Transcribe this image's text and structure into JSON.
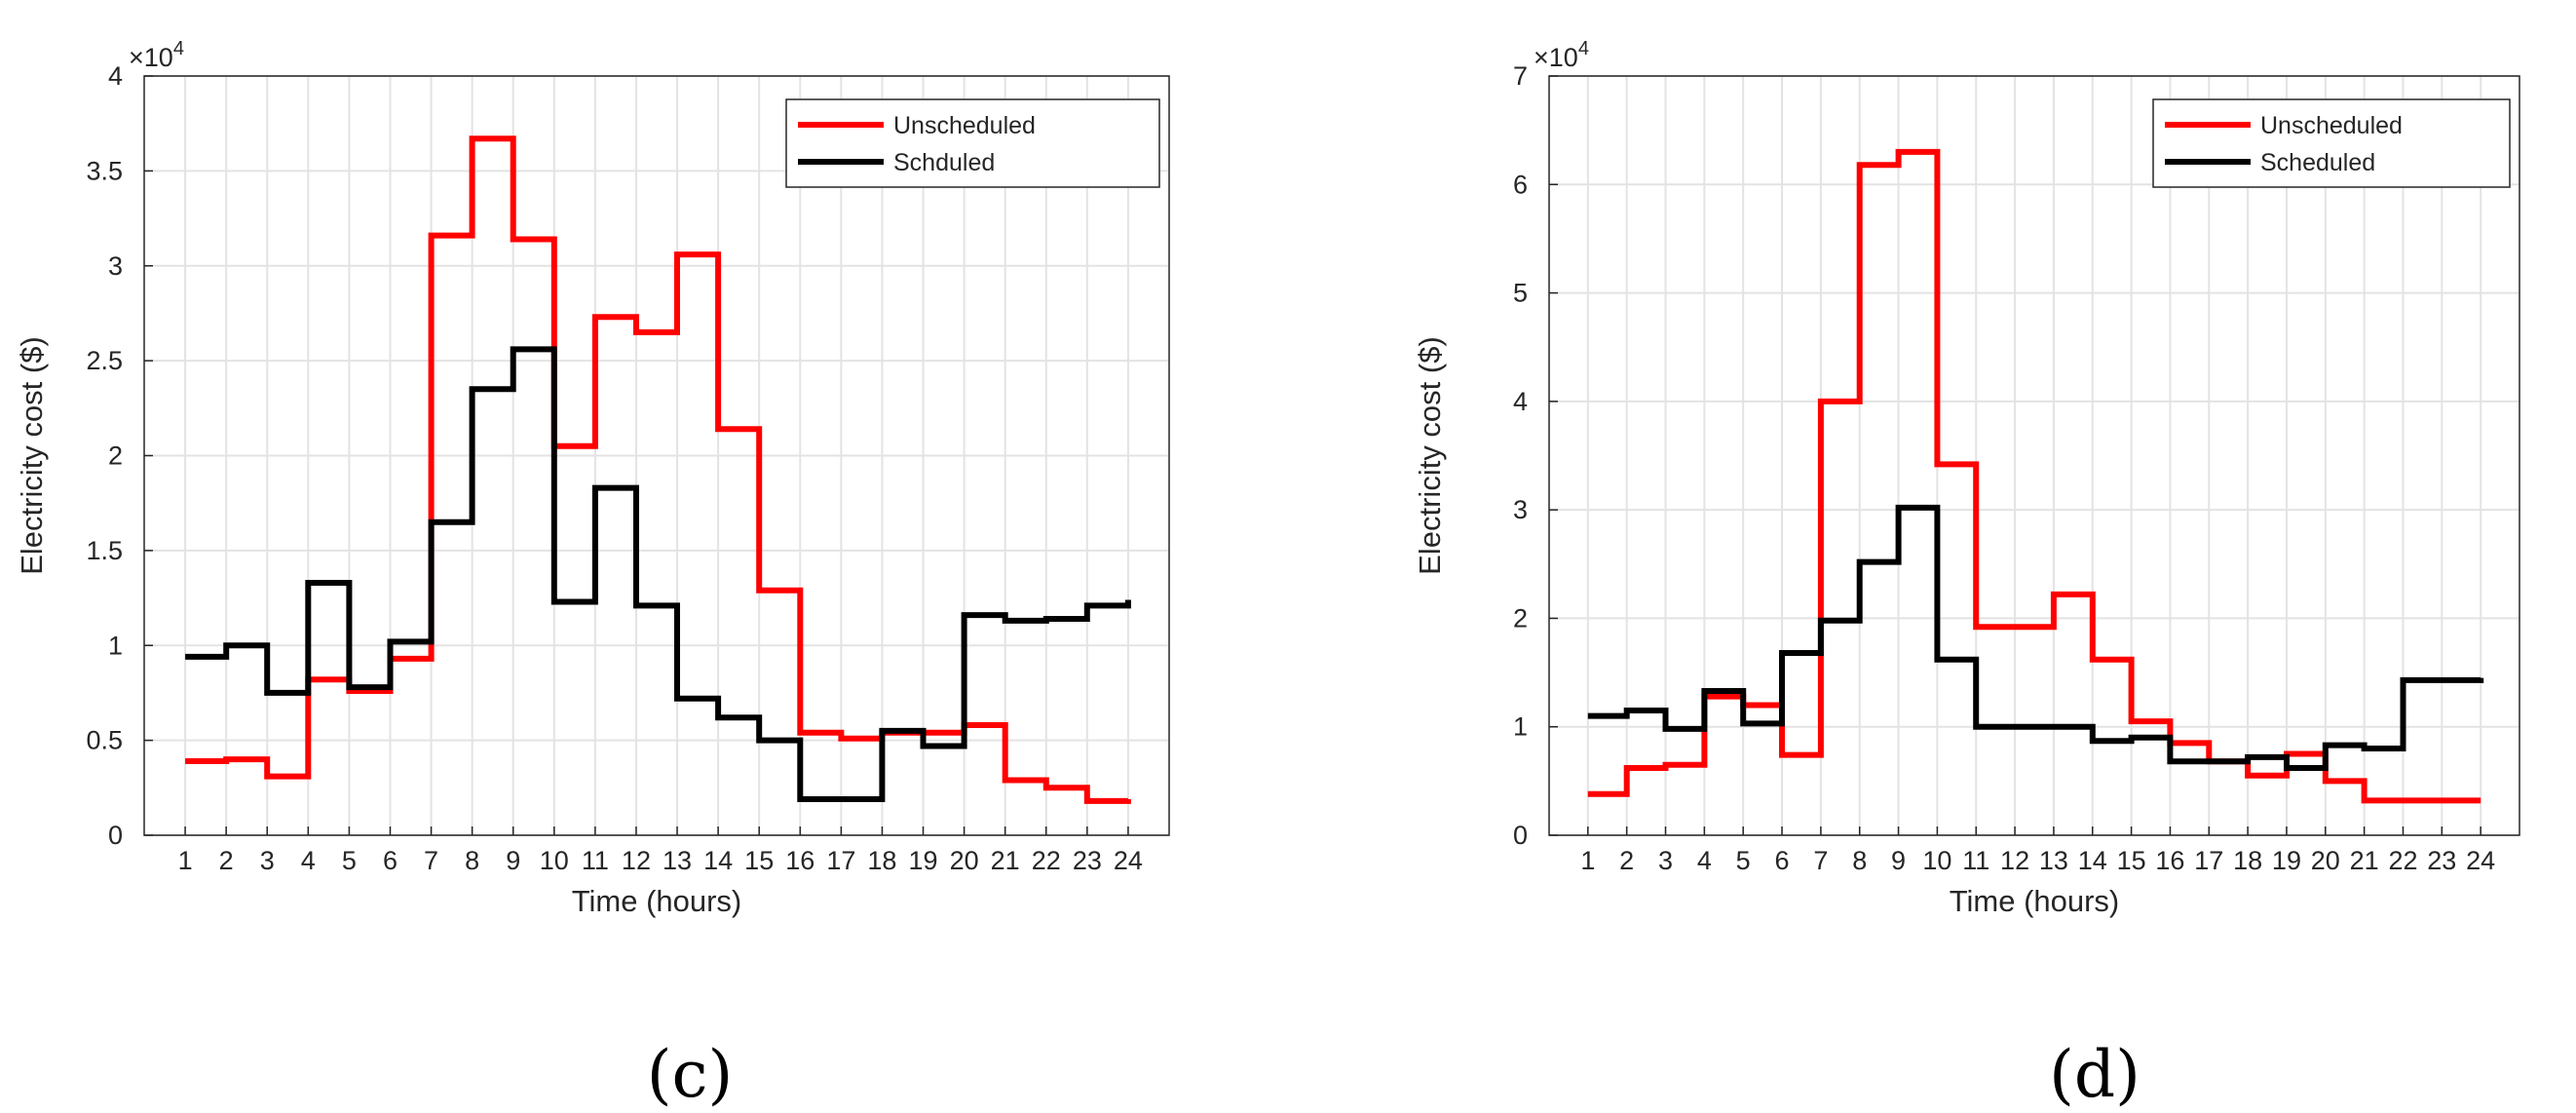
{
  "colors": {
    "unscheduled": "#ff0000",
    "scheduled": "#000000",
    "grid": "#e3e3e3",
    "axis": "#262626"
  },
  "chart_data": [
    {
      "type": "line",
      "step": "post",
      "panel_label": "(c)",
      "xlabel": "Time (hours)",
      "ylabel": "Electricity cost ($)",
      "y_exponent_base": "×10",
      "y_exponent": "4",
      "x": [
        1,
        2,
        3,
        4,
        5,
        6,
        7,
        8,
        9,
        10,
        11,
        12,
        13,
        14,
        15,
        16,
        17,
        18,
        19,
        20,
        21,
        22,
        23,
        24
      ],
      "xticks": [
        "1",
        "2",
        "3",
        "4",
        "5",
        "6",
        "7",
        "8",
        "9",
        "10",
        "11",
        "12",
        "13",
        "14",
        "15",
        "16",
        "17",
        "18",
        "19",
        "20",
        "21",
        "22",
        "23",
        "24"
      ],
      "xlim": [
        0,
        25
      ],
      "ylim": [
        0,
        4
      ],
      "yticks": [
        0,
        0.5,
        1,
        1.5,
        2,
        2.5,
        3,
        3.5,
        4
      ],
      "ytick_labels": [
        "0",
        "0.5",
        "1",
        "1.5",
        "2",
        "2.5",
        "3",
        "3.5",
        "4"
      ],
      "grid": true,
      "legend_position": "top-right",
      "series": [
        {
          "name": "Unscheduled",
          "color": "#ff0000",
          "values": [
            0.39,
            0.4,
            0.31,
            0.82,
            0.76,
            0.93,
            3.16,
            3.67,
            3.14,
            2.05,
            2.73,
            2.65,
            3.06,
            2.14,
            1.29,
            0.54,
            0.51,
            0.54,
            0.54,
            0.58,
            0.29,
            0.25,
            0.18,
            0.19
          ]
        },
        {
          "name": "Schduled",
          "color": "#000000",
          "values": [
            0.94,
            1.0,
            0.75,
            1.33,
            0.78,
            1.02,
            1.65,
            2.35,
            2.56,
            1.23,
            1.83,
            1.21,
            0.72,
            0.62,
            0.5,
            0.19,
            0.19,
            0.55,
            0.47,
            1.16,
            1.13,
            1.14,
            1.21,
            1.24
          ]
        }
      ]
    },
    {
      "type": "line",
      "step": "post",
      "panel_label": "(d)",
      "xlabel": "Time (hours)",
      "ylabel": "Electricity cost ($)",
      "y_exponent_base": "×10",
      "y_exponent": "4",
      "x": [
        1,
        2,
        3,
        4,
        5,
        6,
        7,
        8,
        9,
        10,
        11,
        12,
        13,
        14,
        15,
        16,
        17,
        18,
        19,
        20,
        21,
        22,
        23,
        24
      ],
      "xticks": [
        "1",
        "2",
        "3",
        "4",
        "5",
        "6",
        "7",
        "8",
        "9",
        "10",
        "11",
        "12",
        "13",
        "14",
        "15",
        "16",
        "17",
        "18",
        "19",
        "20",
        "21",
        "22",
        "23",
        "24"
      ],
      "xlim": [
        0,
        25
      ],
      "ylim": [
        0,
        7
      ],
      "yticks": [
        0,
        1,
        2,
        3,
        4,
        5,
        6,
        7
      ],
      "ytick_labels": [
        "0",
        "1",
        "2",
        "3",
        "4",
        "5",
        "6",
        "7"
      ],
      "grid": true,
      "legend_position": "top-right",
      "series": [
        {
          "name": "Unscheduled",
          "color": "#ff0000",
          "values": [
            0.38,
            0.62,
            0.65,
            1.28,
            1.2,
            0.74,
            4.0,
            6.18,
            6.3,
            3.42,
            1.92,
            1.92,
            2.22,
            1.62,
            1.05,
            0.85,
            0.68,
            0.55,
            0.75,
            0.5,
            0.32,
            0.32,
            0.32,
            0.32
          ]
        },
        {
          "name": "Scheduled",
          "color": "#000000",
          "values": [
            1.1,
            1.15,
            0.98,
            1.33,
            1.03,
            1.68,
            1.98,
            2.52,
            3.02,
            1.62,
            1.0,
            1.0,
            1.0,
            0.87,
            0.9,
            0.68,
            0.68,
            0.72,
            0.62,
            0.83,
            0.8,
            1.43,
            1.43,
            1.45
          ]
        }
      ]
    }
  ]
}
